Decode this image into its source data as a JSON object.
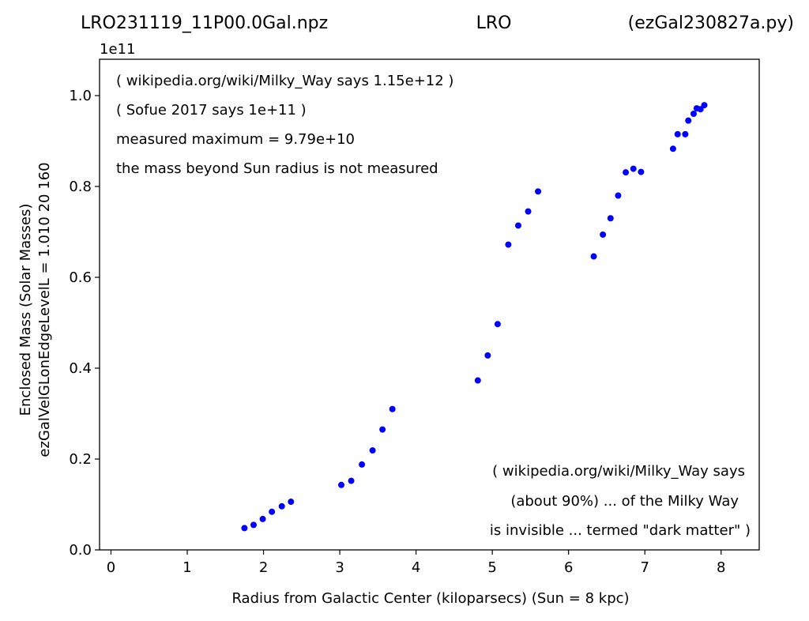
{
  "header": {
    "filename": "LRO231119_11P00.0Gal.npz",
    "center": "LRO",
    "script": "(ezGal230827a.py)"
  },
  "chart_data": {
    "type": "scatter",
    "x_label": "Radius from Galactic Center (kiloparsecs)  (Sun = 8 kpc)",
    "y_label_lines": [
      "Enclosed Mass (Solar Masses)",
      "ezGalVelGLonEdgeLevelL = 1.010  20  160"
    ],
    "y_offset_label": "1e11",
    "xlim": [
      -0.15,
      8.5
    ],
    "ylim": [
      0.0,
      1.08
    ],
    "x_ticks": [
      0,
      1,
      2,
      3,
      4,
      5,
      6,
      7,
      8
    ],
    "y_ticks": [
      0.0,
      0.2,
      0.4,
      0.6,
      0.8,
      1.0
    ],
    "y_tick_labels": [
      "0.0",
      "0.2",
      "0.4",
      "0.6",
      "0.8",
      "1.0"
    ],
    "grid": false,
    "marker_color": "#0000ff",
    "points": [
      {
        "x": 1.75,
        "y": 0.048
      },
      {
        "x": 1.87,
        "y": 0.055
      },
      {
        "x": 1.99,
        "y": 0.068
      },
      {
        "x": 2.11,
        "y": 0.084
      },
      {
        "x": 2.24,
        "y": 0.096
      },
      {
        "x": 2.36,
        "y": 0.106
      },
      {
        "x": 3.02,
        "y": 0.143
      },
      {
        "x": 3.15,
        "y": 0.152
      },
      {
        "x": 3.29,
        "y": 0.188
      },
      {
        "x": 3.43,
        "y": 0.219
      },
      {
        "x": 3.56,
        "y": 0.265
      },
      {
        "x": 3.69,
        "y": 0.31
      },
      {
        "x": 4.81,
        "y": 0.373
      },
      {
        "x": 4.94,
        "y": 0.428
      },
      {
        "x": 5.07,
        "y": 0.497
      },
      {
        "x": 5.21,
        "y": 0.672
      },
      {
        "x": 5.34,
        "y": 0.714
      },
      {
        "x": 5.47,
        "y": 0.745
      },
      {
        "x": 5.6,
        "y": 0.789
      },
      {
        "x": 6.33,
        "y": 0.646
      },
      {
        "x": 6.45,
        "y": 0.694
      },
      {
        "x": 6.55,
        "y": 0.73
      },
      {
        "x": 6.65,
        "y": 0.78
      },
      {
        "x": 6.75,
        "y": 0.831
      },
      {
        "x": 6.85,
        "y": 0.839
      },
      {
        "x": 6.95,
        "y": 0.832
      },
      {
        "x": 7.37,
        "y": 0.883
      },
      {
        "x": 7.43,
        "y": 0.915
      },
      {
        "x": 7.53,
        "y": 0.915
      },
      {
        "x": 7.57,
        "y": 0.945
      },
      {
        "x": 7.64,
        "y": 0.96
      },
      {
        "x": 7.68,
        "y": 0.972
      },
      {
        "x": 7.73,
        "y": 0.97
      },
      {
        "x": 7.78,
        "y": 0.979
      }
    ],
    "annotations_top": [
      "( wikipedia.org/wiki/Milky_Way says 1.15e+12 )",
      "( Sofue 2017 says 1e+11 )",
      "measured maximum = 9.79e+10",
      "the mass beyond Sun radius is not measured"
    ],
    "annotations_bottom": [
      "( wikipedia.org/wiki/Milky_Way says",
      "(about 90%) ... of the Milky Way",
      "is invisible ... termed \"dark matter\" )"
    ]
  }
}
